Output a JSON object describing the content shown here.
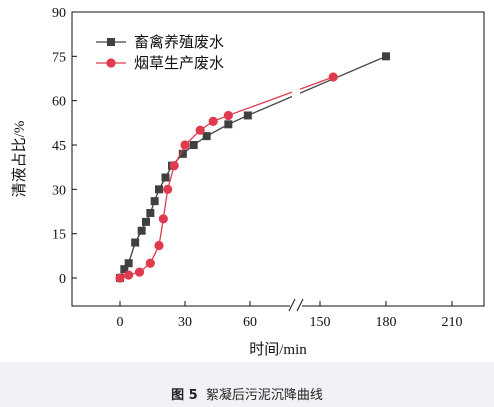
{
  "caption": {
    "figure_number": "图 5",
    "title": "絮凝后污泥沉降曲线"
  },
  "chart_data": {
    "type": "line",
    "xlabel": "时间/min",
    "ylabel": "清液占比/%",
    "y_ticks": [
      "0",
      "15",
      "30",
      "45",
      "60",
      "75",
      "90"
    ],
    "x_ticks": [
      "0",
      "30",
      "60",
      "150",
      "180",
      "210"
    ],
    "ylim": [
      0,
      90
    ],
    "x_axis_break": [
      75,
      135
    ],
    "legend_position": "top-left",
    "series": [
      {
        "name": "畜禽养殖废水",
        "color": "#404040",
        "marker": "square",
        "points": [
          [
            0,
            0
          ],
          [
            2,
            3
          ],
          [
            4,
            5
          ],
          [
            7,
            12
          ],
          [
            10,
            16
          ],
          [
            12,
            19
          ],
          [
            14,
            22
          ],
          [
            16,
            26
          ],
          [
            18,
            30
          ],
          [
            21,
            34
          ],
          [
            24,
            38
          ],
          [
            29,
            42
          ],
          [
            34,
            45
          ],
          [
            40,
            48
          ],
          [
            50,
            52
          ],
          [
            59,
            55
          ],
          [
            180,
            75
          ]
        ]
      },
      {
        "name": "烟草生产废水",
        "color": "#e03a4e",
        "marker": "circle",
        "points": [
          [
            0,
            0
          ],
          [
            4,
            1
          ],
          [
            9,
            2
          ],
          [
            14,
            5
          ],
          [
            18,
            11
          ],
          [
            20,
            20
          ],
          [
            22,
            30
          ],
          [
            25,
            38
          ],
          [
            30,
            45
          ],
          [
            37,
            50
          ],
          [
            43,
            53
          ],
          [
            50,
            55
          ],
          [
            156,
            68
          ]
        ]
      }
    ]
  }
}
